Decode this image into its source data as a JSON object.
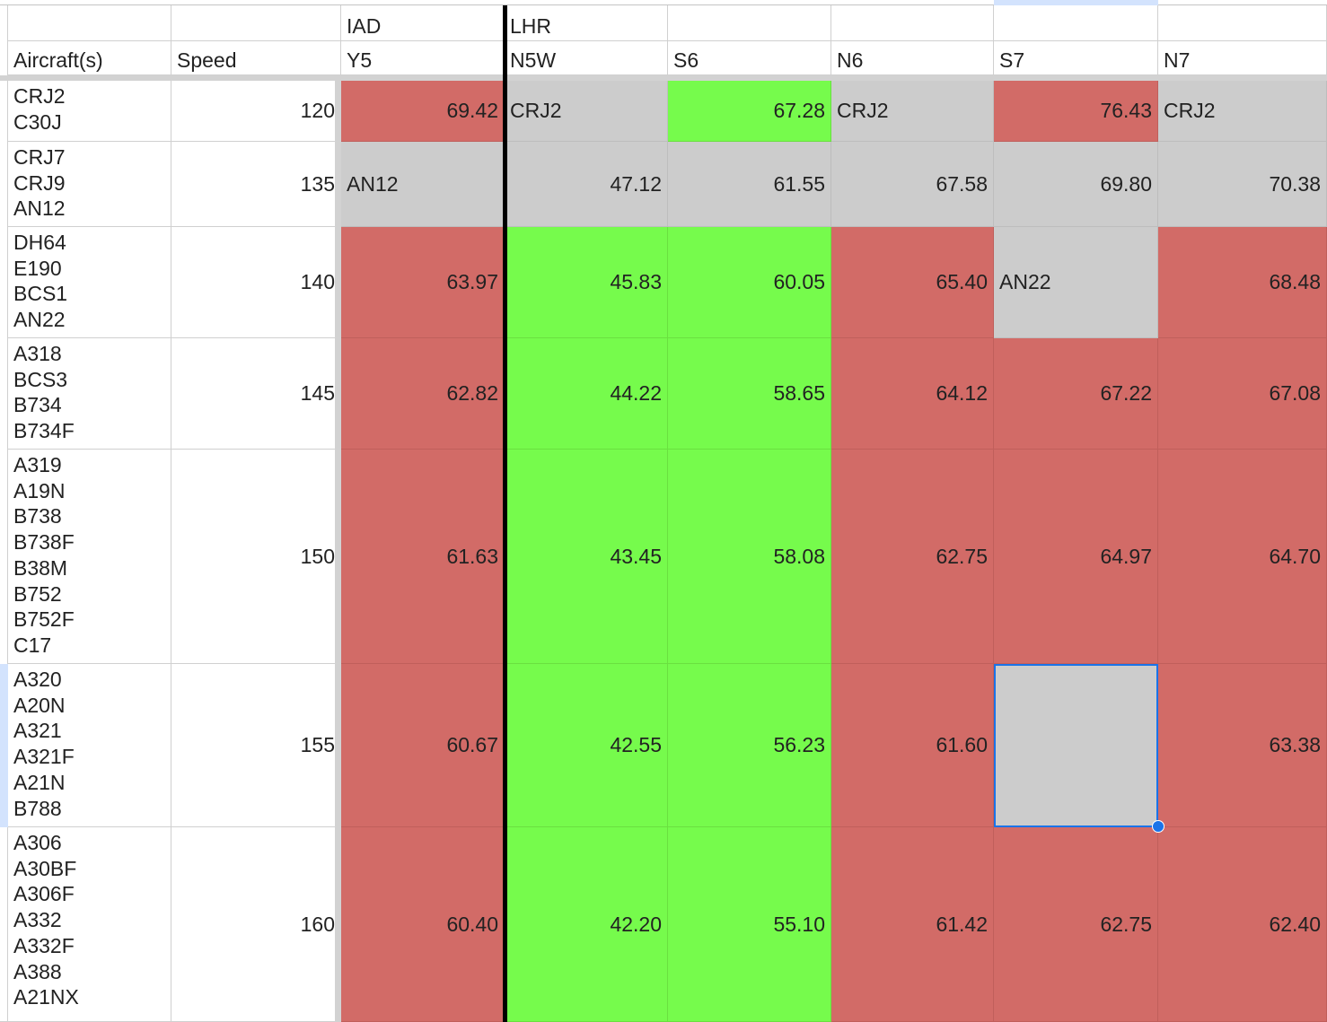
{
  "spreadsheet": {
    "headers": {
      "row1": [
        "",
        "",
        "IAD",
        "LHR",
        "",
        "",
        "",
        ""
      ],
      "row2": [
        "Aircraft(s)",
        "Speed",
        "Y5",
        "N5W",
        "S6",
        "N6",
        "S7",
        "N7"
      ]
    },
    "rows": [
      {
        "aircraft": "CRJ2\nC30J",
        "speed": "120",
        "cells": [
          {
            "text": "69.42",
            "color": "red",
            "align": "num"
          },
          {
            "text": "CRJ2",
            "color": "gray",
            "align": "txt"
          },
          {
            "text": "67.28",
            "color": "green",
            "align": "num"
          },
          {
            "text": "CRJ2",
            "color": "gray",
            "align": "txt"
          },
          {
            "text": "76.43",
            "color": "red",
            "align": "num"
          },
          {
            "text": "CRJ2",
            "color": "gray",
            "align": "txt"
          }
        ]
      },
      {
        "aircraft": "CRJ7\nCRJ9\nAN12",
        "speed": "135",
        "cells": [
          {
            "text": "AN12",
            "color": "gray",
            "align": "txt"
          },
          {
            "text": "47.12",
            "color": "gray",
            "align": "num"
          },
          {
            "text": "61.55",
            "color": "gray",
            "align": "num"
          },
          {
            "text": "67.58",
            "color": "gray",
            "align": "num"
          },
          {
            "text": "69.80",
            "color": "gray",
            "align": "num"
          },
          {
            "text": "70.38",
            "color": "gray",
            "align": "num"
          }
        ]
      },
      {
        "aircraft": "DH64\nE190\nBCS1\nAN22",
        "speed": "140",
        "cells": [
          {
            "text": "63.97",
            "color": "red",
            "align": "num"
          },
          {
            "text": "45.83",
            "color": "green",
            "align": "num"
          },
          {
            "text": "60.05",
            "color": "green",
            "align": "num"
          },
          {
            "text": "65.40",
            "color": "red",
            "align": "num"
          },
          {
            "text": "AN22",
            "color": "gray",
            "align": "txt"
          },
          {
            "text": "68.48",
            "color": "red",
            "align": "num"
          }
        ]
      },
      {
        "aircraft": "A318\nBCS3\nB734\nB734F",
        "speed": "145",
        "cells": [
          {
            "text": "62.82",
            "color": "red",
            "align": "num"
          },
          {
            "text": "44.22",
            "color": "green",
            "align": "num"
          },
          {
            "text": "58.65",
            "color": "green",
            "align": "num"
          },
          {
            "text": "64.12",
            "color": "red",
            "align": "num"
          },
          {
            "text": "67.22",
            "color": "red",
            "align": "num"
          },
          {
            "text": "67.08",
            "color": "red",
            "align": "num"
          }
        ]
      },
      {
        "aircraft": "A319\nA19N\nB738\nB738F\nB38M\nB752\nB752F\nC17",
        "speed": "150",
        "cells": [
          {
            "text": "61.63",
            "color": "red",
            "align": "num"
          },
          {
            "text": "43.45",
            "color": "green",
            "align": "num"
          },
          {
            "text": "58.08",
            "color": "green",
            "align": "num"
          },
          {
            "text": "62.75",
            "color": "red",
            "align": "num"
          },
          {
            "text": "64.97",
            "color": "red",
            "align": "num"
          },
          {
            "text": "64.70",
            "color": "red",
            "align": "num"
          }
        ]
      },
      {
        "aircraft": "A320\nA20N\nA321\nA321F\nA21N\nB788",
        "speed": "155",
        "cells": [
          {
            "text": "60.67",
            "color": "red",
            "align": "num"
          },
          {
            "text": "42.55",
            "color": "green",
            "align": "num"
          },
          {
            "text": "56.23",
            "color": "green",
            "align": "num"
          },
          {
            "text": "61.60",
            "color": "red",
            "align": "num"
          },
          {
            "text": "",
            "color": "gray",
            "align": "num"
          },
          {
            "text": "63.38",
            "color": "red",
            "align": "num"
          }
        ]
      },
      {
        "aircraft": "A306\nA30BF\nA306F\nA332\nA332F\nA388\nA21NX",
        "speed": "160",
        "cells": [
          {
            "text": "60.40",
            "color": "red",
            "align": "num"
          },
          {
            "text": "42.20",
            "color": "green",
            "align": "num"
          },
          {
            "text": "55.10",
            "color": "green",
            "align": "num"
          },
          {
            "text": "61.42",
            "color": "red",
            "align": "num"
          },
          {
            "text": "62.75",
            "color": "red",
            "align": "num"
          },
          {
            "text": "62.40",
            "color": "red",
            "align": "num"
          }
        ]
      }
    ],
    "colors": {
      "red": "#d26b67",
      "green": "#76fb4c",
      "gray": "#cccccc",
      "selection": "#1a73e8"
    },
    "selected_cell": {
      "row": 5,
      "column": "S7"
    }
  }
}
